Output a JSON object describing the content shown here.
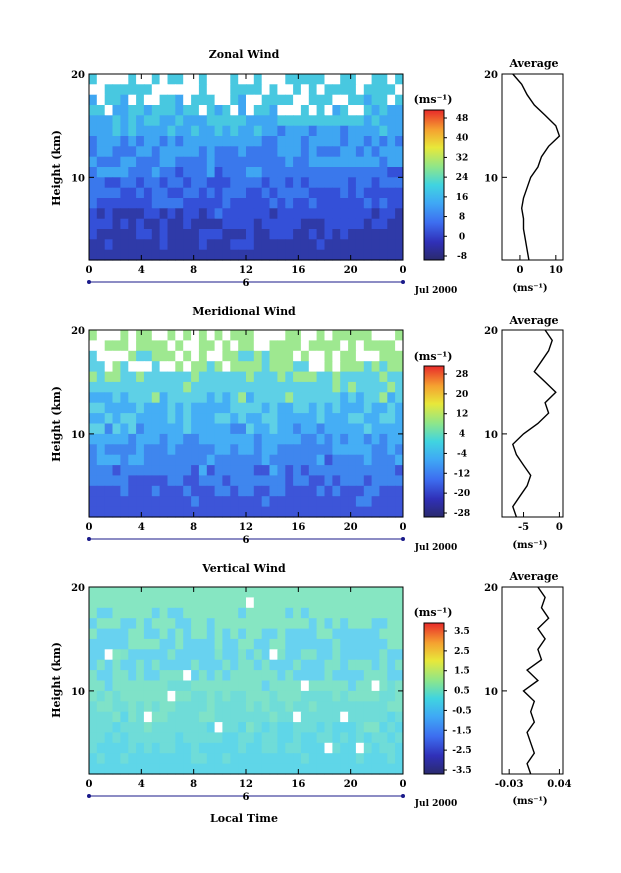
{
  "figure": {
    "date_label": "Jul 2000",
    "xlabel": "Local Time",
    "ylabel": "Height (km)",
    "unit": "(ms⁻¹)",
    "avg_unit": "(ms⁻¹)"
  },
  "chart_data": [
    {
      "type": "heatmap",
      "title": "Zonal Wind",
      "xlabel": "",
      "ylabel": "Height (km)",
      "x_ticks": [
        "0",
        "4",
        "8",
        "12",
        "16",
        "20",
        "0"
      ],
      "x_sub_label": "6",
      "y_ticks": [
        "10",
        "20"
      ],
      "xlim": [
        0,
        24
      ],
      "ylim": [
        2,
        20
      ],
      "colorbar": {
        "unit": "(ms⁻¹)",
        "labels": [
          "48",
          "40",
          "32",
          "24",
          "16",
          "8",
          "0",
          "-8"
        ],
        "range": [
          -8,
          52
        ]
      },
      "average_profile": {
        "title": "Average",
        "xlabel": "(ms⁻¹)",
        "x_ticks": [
          "0",
          "10"
        ],
        "xlim": [
          -5,
          12
        ],
        "height": [
          2,
          3,
          4,
          5,
          6,
          7,
          8,
          9,
          10,
          11,
          12,
          13,
          14,
          15,
          16,
          17,
          18,
          19,
          20
        ],
        "value": [
          2.5,
          2,
          1.5,
          1,
          1,
          0.5,
          1,
          2,
          3,
          5,
          6,
          8,
          11,
          10,
          7,
          4,
          2,
          0.5,
          -2
        ]
      }
    },
    {
      "type": "heatmap",
      "title": "Meridional Wind",
      "xlabel": "",
      "ylabel": "Height (km)",
      "x_ticks": [
        "0",
        "4",
        "8",
        "12",
        "16",
        "20",
        "0"
      ],
      "x_sub_label": "6",
      "y_ticks": [
        "10",
        "20"
      ],
      "xlim": [
        0,
        24
      ],
      "ylim": [
        2,
        20
      ],
      "colorbar": {
        "unit": "(ms⁻¹)",
        "labels": [
          "28",
          "20",
          "12",
          "4",
          "-4",
          "-12",
          "-20",
          "-28"
        ],
        "range": [
          -32,
          32
        ]
      },
      "average_profile": {
        "title": "Average",
        "xlabel": "(ms⁻¹)",
        "x_ticks": [
          "-5",
          "0"
        ],
        "xlim": [
          -8,
          0.5
        ],
        "height": [
          2,
          3,
          4,
          5,
          6,
          7,
          8,
          9,
          10,
          11,
          12,
          13,
          14,
          15,
          16,
          17,
          18,
          19,
          20
        ],
        "value": [
          -6,
          -6.5,
          -5.5,
          -4.5,
          -4,
          -5,
          -6,
          -6.5,
          -5,
          -3,
          -1.5,
          -2,
          -0.5,
          -2,
          -3.5,
          -2.5,
          -1.5,
          -1,
          -2
        ]
      }
    },
    {
      "type": "heatmap",
      "title": "Vertical Wind",
      "xlabel": "Local Time",
      "ylabel": "Height (km)",
      "x_ticks": [
        "0",
        "4",
        "8",
        "12",
        "16",
        "20",
        "0"
      ],
      "x_sub_label": "6",
      "y_ticks": [
        "10",
        "20"
      ],
      "xlim": [
        0,
        24
      ],
      "ylim": [
        2,
        20
      ],
      "colorbar": {
        "unit": "(ms⁻¹)",
        "labels": [
          "3.5",
          "2.5",
          "1.5",
          "0.5",
          "-0.5",
          "-1.5",
          "-2.5",
          "-3.5"
        ],
        "range": [
          -4,
          4
        ]
      },
      "average_profile": {
        "title": "Average",
        "xlabel": "(ms⁻¹)",
        "x_ticks": [
          "-0.03",
          "0.04"
        ],
        "xlim": [
          -0.04,
          0.045
        ],
        "height": [
          2,
          3,
          4,
          5,
          6,
          7,
          8,
          9,
          10,
          11,
          12,
          13,
          14,
          15,
          16,
          17,
          18,
          19,
          20
        ],
        "value": [
          0.0,
          -0.005,
          0.005,
          0.0,
          -0.005,
          0.005,
          0.0,
          0.005,
          -0.01,
          0.01,
          -0.005,
          0.015,
          0.01,
          0.02,
          0.01,
          0.025,
          0.015,
          0.02,
          0.01
        ]
      }
    }
  ]
}
